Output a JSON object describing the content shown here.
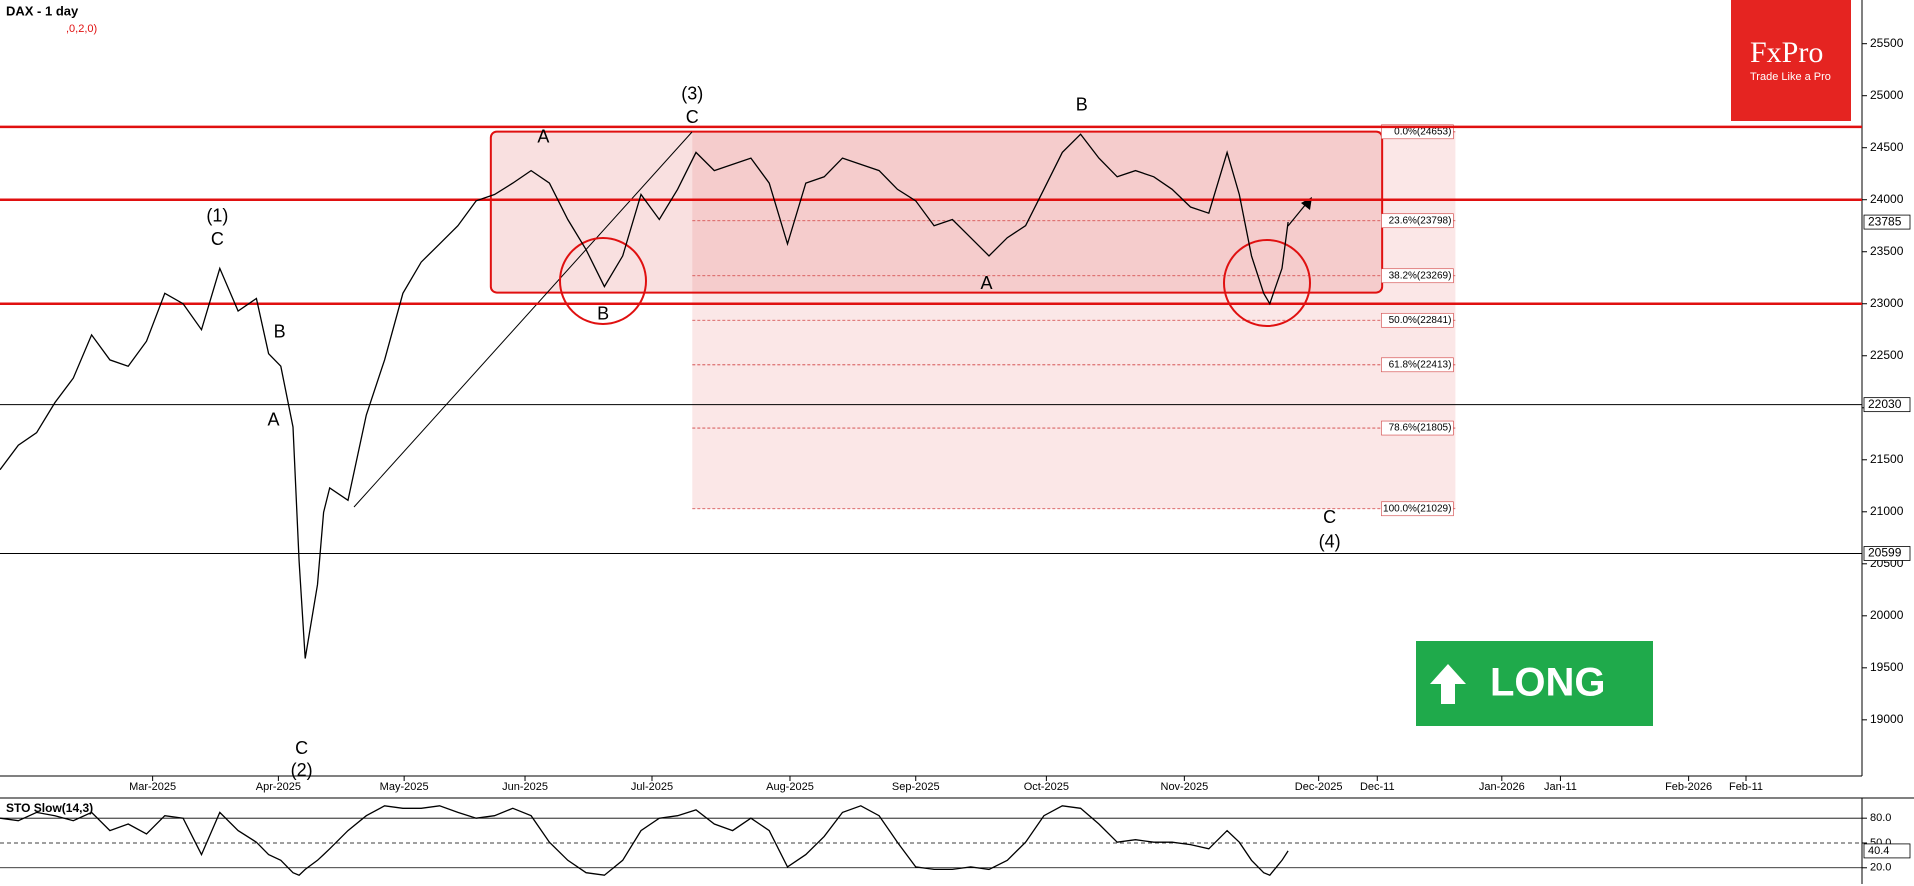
{
  "chart_data": [
    {
      "type": "line",
      "title": "DAX - 1 day",
      "subtitle": ",0,2,0)",
      "x": [
        0,
        3,
        6,
        9,
        12,
        15,
        18,
        21,
        24,
        27,
        30,
        33,
        36,
        39,
        42,
        44,
        46,
        48,
        49,
        50,
        52,
        53,
        54,
        57,
        60,
        63,
        66,
        69,
        72,
        75,
        78,
        81,
        84,
        87,
        90,
        93,
        96,
        99,
        102,
        105,
        108,
        111,
        114,
        117,
        120,
        123,
        126,
        129,
        132,
        135,
        138,
        141,
        144,
        147,
        150,
        153,
        156,
        159,
        162,
        165,
        168,
        171,
        174,
        177,
        180,
        183,
        186,
        189,
        192,
        195,
        198,
        201,
        203,
        205,
        207,
        208,
        210,
        211
      ],
      "xlim": [
        0,
        305
      ],
      "xticks": [
        {
          "value": 25,
          "label": "Mar-2025"
        },
        {
          "value": 45.6,
          "label": "Apr-2025"
        },
        {
          "value": 66.2,
          "label": "May-2025"
        },
        {
          "value": 86,
          "label": "Jun-2025"
        },
        {
          "value": 106.8,
          "label": "Jul-2025"
        },
        {
          "value": 129.4,
          "label": "Aug-2025"
        },
        {
          "value": 150,
          "label": "Sep-2025"
        },
        {
          "value": 171.4,
          "label": "Oct-2025"
        },
        {
          "value": 194,
          "label": "Nov-2025"
        },
        {
          "value": 216,
          "label": "Dec-2025"
        },
        {
          "value": 225.6,
          "label": "Dec-11"
        },
        {
          "value": 246,
          "label": "Jan-2026"
        },
        {
          "value": 255.6,
          "label": "Jan-11"
        },
        {
          "value": 276.6,
          "label": "Feb-2026"
        },
        {
          "value": 286,
          "label": "Feb-11"
        }
      ],
      "ylim": [
        18460,
        25920
      ],
      "yticks": [
        19000,
        19500,
        20000,
        20500,
        21000,
        21500,
        22000,
        22500,
        23000,
        23500,
        24000,
        24500,
        25000,
        25500
      ],
      "series": [
        {
          "color": "#000000",
          "values": [
            21405,
            21640,
            21760,
            22050,
            22285,
            22700,
            22460,
            22400,
            22640,
            23100,
            23000,
            22750,
            23340,
            22930,
            23050,
            22520,
            22400,
            21815,
            20525,
            19590,
            20300,
            20995,
            21230,
            21110,
            21930,
            22460,
            23100,
            23400,
            23575,
            23750,
            23990,
            24050,
            24160,
            24280,
            24160,
            23810,
            23520,
            23165,
            23460,
            24050,
            23810,
            24100,
            24455,
            24280,
            24340,
            24400,
            24160,
            23575,
            24160,
            24220,
            24400,
            24340,
            24280,
            24100,
            23990,
            23750,
            23810,
            23635,
            23460,
            23635,
            23750,
            24100,
            24455,
            24630,
            24400,
            24220,
            24280,
            24220,
            24100,
            23930,
            23870,
            24455,
            24050,
            23460,
            23100,
            23000,
            23340,
            23785
          ]
        }
      ],
      "resistance": {
        "color": "#e01010",
        "values": [
          24700,
          24000,
          23000
        ]
      },
      "levels": [
        22030,
        20599
      ],
      "range_box": {
        "x": [
          80.4,
          226.4
        ],
        "y": [
          23107,
          24655
        ]
      },
      "fib": {
        "x": [
          113.4,
          238.4
        ],
        "levels": [
          {
            "value": 24653,
            "label": "0.0%(24653)"
          },
          {
            "value": 23798,
            "label": "23.6%(23798)"
          },
          {
            "value": 23269,
            "label": "38.2%(23269)"
          },
          {
            "value": 22841,
            "label": "50.0%(22841)"
          },
          {
            "value": 22413,
            "label": "61.8%(22413)"
          },
          {
            "value": 21805,
            "label": "78.6%(21805)"
          },
          {
            "value": 21029,
            "label": "100.0%(21029)"
          }
        ]
      },
      "annotations": [
        {
          "text": "(1)",
          "x": 35.6,
          "y": 23834
        },
        {
          "text": "C",
          "x": 35.6,
          "y": 23611
        },
        {
          "text": "B",
          "x": 45.8,
          "y": 22719
        },
        {
          "text": "A",
          "x": 44.8,
          "y": 21874
        },
        {
          "text": "C",
          "x": 49.4,
          "y": 18718
        },
        {
          "text": "(2)",
          "x": 49.4,
          "y": 18507
        },
        {
          "text": "A",
          "x": 89,
          "y": 24597
        },
        {
          "text": "B",
          "x": 98.8,
          "y": 22895
        },
        {
          "text": "(3)",
          "x": 113.4,
          "y": 25007
        },
        {
          "text": "C",
          "x": 113.4,
          "y": 24784
        },
        {
          "text": "A",
          "x": 161.6,
          "y": 23189
        },
        {
          "text": "B",
          "x": 177.2,
          "y": 24902
        },
        {
          "text": "C",
          "x": 217.8,
          "y": 20936
        },
        {
          "text": "(4)",
          "x": 217.8,
          "y": 20701
        }
      ]
    },
    {
      "type": "line",
      "title": "STO Slow(14,3)",
      "x": [
        0,
        3,
        6,
        9,
        12,
        15,
        18,
        21,
        24,
        27,
        30,
        33,
        36,
        39,
        42,
        44,
        46,
        48,
        49,
        50,
        52,
        53,
        54,
        57,
        60,
        63,
        66,
        69,
        72,
        75,
        78,
        81,
        84,
        87,
        90,
        93,
        96,
        99,
        102,
        105,
        108,
        111,
        114,
        117,
        120,
        123,
        126,
        129,
        132,
        135,
        138,
        141,
        144,
        147,
        150,
        153,
        156,
        159,
        162,
        165,
        168,
        171,
        174,
        177,
        180,
        183,
        186,
        189,
        192,
        195,
        198,
        201,
        203,
        205,
        207,
        208,
        210,
        211
      ],
      "xlim": [
        0,
        305
      ],
      "ylim": [
        4,
        102
      ],
      "yticks": [
        {
          "value": 80,
          "label": "80.0"
        },
        {
          "value": 50,
          "label": "50.0"
        },
        {
          "value": 20,
          "label": "20.0"
        }
      ],
      "series": [
        {
          "color": "#000000",
          "values": [
            80,
            77,
            87,
            83,
            77,
            87,
            65,
            73,
            61,
            83,
            80,
            36,
            87,
            65,
            51,
            36,
            29,
            14,
            11,
            18,
            29,
            36,
            43,
            65,
            83,
            95,
            92,
            92,
            95,
            87,
            80,
            83,
            92,
            83,
            51,
            29,
            14,
            11,
            29,
            65,
            80,
            83,
            90,
            73,
            65,
            80,
            65,
            21,
            36,
            58,
            87,
            95,
            83,
            51,
            21,
            18,
            18,
            21,
            18,
            29,
            51,
            83,
            95,
            92,
            73,
            51,
            54,
            51,
            51,
            48,
            43,
            65,
            51,
            29,
            14,
            11,
            29,
            40.4
          ]
        }
      ]
    }
  ],
  "logo": {
    "brand": "FxPro",
    "tagline": "Trade Like a Pro"
  },
  "badge": "LONG"
}
